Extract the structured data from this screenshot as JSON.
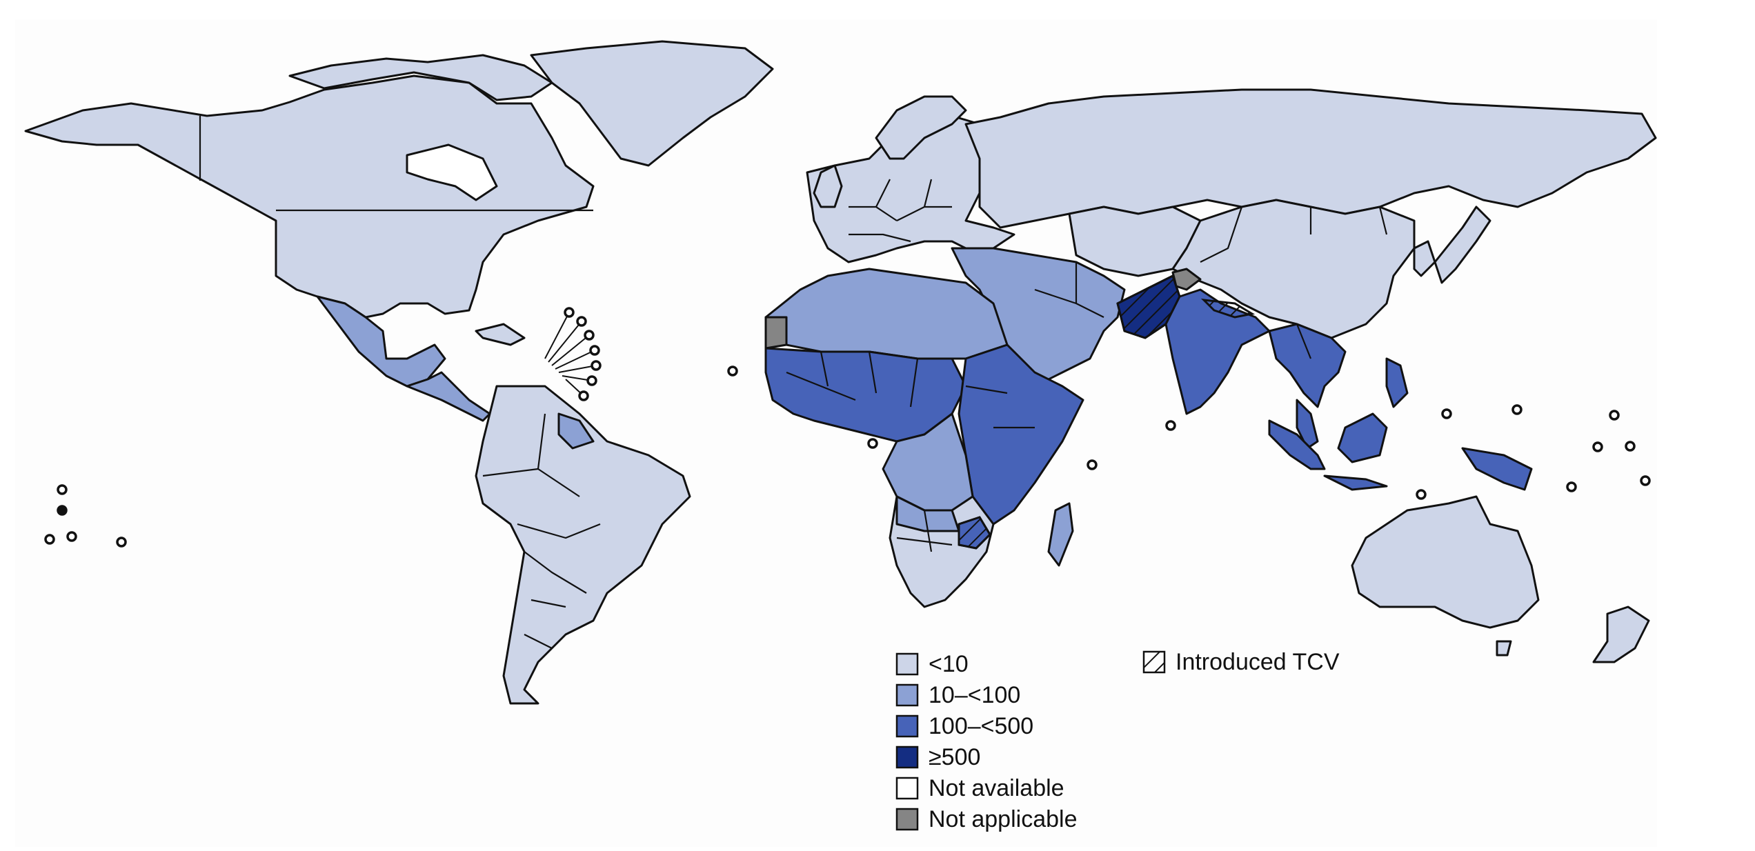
{
  "map": {
    "classes": {
      "lt10": "#cdd5e8",
      "10to100": "#8ca1d4",
      "100to500": "#4763b8",
      "gte500": "#142d82",
      "na": "#ffffff",
      "notapplicable": "#858585"
    },
    "ocean_color": "#fdfdfd",
    "border_color": "#111111"
  },
  "legend": {
    "items": [
      {
        "label": "<10",
        "color": "#cdd5e8"
      },
      {
        "label": "10–<100",
        "color": "#8ca1d4"
      },
      {
        "label": "100–<500",
        "color": "#4763b8"
      },
      {
        "label": "≥500",
        "color": "#142d82"
      },
      {
        "label": "Not available",
        "color": "#ffffff"
      },
      {
        "label": "Not applicable",
        "color": "#858585"
      }
    ],
    "tcv_label": "Introduced TCV"
  }
}
